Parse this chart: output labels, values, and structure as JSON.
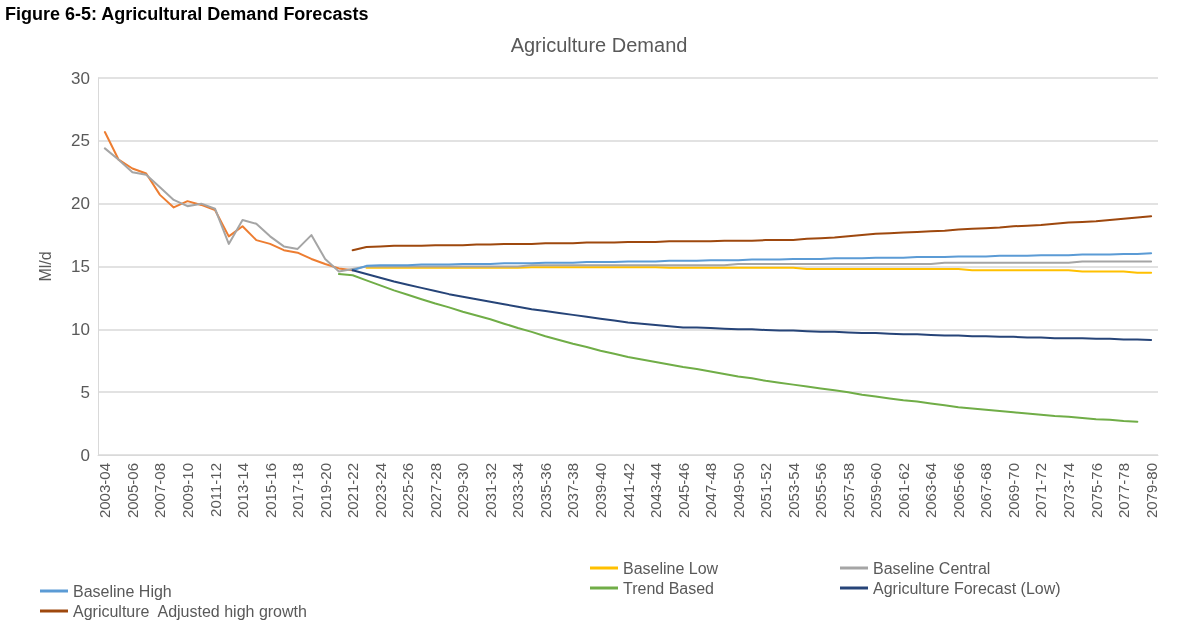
{
  "chart_data": {
    "type": "line",
    "title": "Figure 6-5: Agricultural Demand Forecasts",
    "subtitle": "Agriculture Demand",
    "ylabel": "Ml/d",
    "categories": [
      "2003-04",
      null,
      "2005-06",
      null,
      "2007-08",
      null,
      "2009-10",
      null,
      "2011-12",
      null,
      "2013-14",
      null,
      "2015-16",
      null,
      "2017-18",
      null,
      "2019-20",
      null,
      "2021-22",
      null,
      "2023-24",
      null,
      "2025-26",
      null,
      "2027-28",
      null,
      "2029-30",
      null,
      "2031-32",
      null,
      "2033-34",
      null,
      "2035-36",
      null,
      "2037-38",
      null,
      "2039-40",
      null,
      "2041-42",
      null,
      "2043-44",
      null,
      "2045-46",
      null,
      "2047-48",
      null,
      "2049-50",
      null,
      "2051-52",
      null,
      "2053-54",
      null,
      "2055-56",
      null,
      "2057-58",
      null,
      "2059-60",
      null,
      "2061-62",
      null,
      "2063-64",
      null,
      "2065-66",
      null,
      "2067-68",
      null,
      "2069-70",
      null,
      "2071-72",
      null,
      "2073-74",
      null,
      "2075-76",
      null,
      "2077-78",
      null,
      "2079-80"
    ],
    "series": [
      {
        "color": "#ed7d31",
        "values": [
          25.7,
          23.5,
          22.8,
          22.4,
          20.7,
          19.7,
          20.2,
          19.9,
          19.5,
          17.4,
          18.2,
          17.1,
          16.8,
          16.3,
          16.1,
          15.6,
          15.2,
          14.85,
          14.7,
          null,
          null,
          null,
          null,
          null,
          null,
          null,
          null,
          null,
          null,
          null,
          null,
          null,
          null,
          null,
          null,
          null,
          null,
          null,
          null,
          null,
          null,
          null,
          null,
          null,
          null,
          null,
          null,
          null,
          null,
          null,
          null,
          null,
          null,
          null,
          null,
          null,
          null,
          null,
          null,
          null,
          null,
          null,
          null,
          null,
          null,
          null,
          null,
          null,
          null,
          null,
          null,
          null,
          null,
          null,
          null,
          null,
          null
        ]
      },
      {
        "name": "Baseline Low",
        "color": "#ffc000",
        "values": [
          null,
          null,
          null,
          null,
          null,
          null,
          null,
          null,
          null,
          null,
          null,
          null,
          null,
          null,
          null,
          null,
          null,
          null,
          null,
          14.9,
          14.9,
          14.9,
          14.9,
          14.9,
          14.9,
          14.9,
          14.9,
          14.9,
          14.9,
          14.9,
          14.9,
          14.95,
          14.95,
          14.95,
          14.95,
          14.95,
          14.95,
          14.95,
          14.95,
          14.95,
          14.95,
          14.9,
          14.9,
          14.9,
          14.9,
          14.9,
          14.9,
          14.9,
          14.9,
          14.9,
          14.9,
          14.8,
          14.8,
          14.8,
          14.8,
          14.8,
          14.8,
          14.8,
          14.8,
          14.8,
          14.8,
          14.8,
          14.8,
          14.7,
          14.7,
          14.7,
          14.7,
          14.7,
          14.7,
          14.7,
          14.7,
          14.6,
          14.6,
          14.6,
          14.6,
          14.5,
          14.5
        ]
      },
      {
        "name": "Baseline Central",
        "color": "#a5a5a5",
        "values": [
          24.4,
          23.5,
          22.5,
          22.3,
          21.3,
          20.3,
          19.8,
          20.0,
          19.6,
          16.8,
          18.7,
          18.4,
          17.4,
          16.6,
          16.4,
          17.5,
          15.6,
          14.6,
          14.8,
          15.0,
          15.0,
          15.0,
          15.0,
          15.0,
          15.0,
          15.0,
          15.0,
          15.0,
          15.0,
          15.0,
          15.0,
          15.1,
          15.1,
          15.1,
          15.1,
          15.1,
          15.1,
          15.1,
          15.1,
          15.1,
          15.1,
          15.1,
          15.1,
          15.1,
          15.1,
          15.1,
          15.2,
          15.2,
          15.2,
          15.2,
          15.2,
          15.2,
          15.2,
          15.2,
          15.2,
          15.2,
          15.2,
          15.2,
          15.2,
          15.2,
          15.2,
          15.3,
          15.3,
          15.3,
          15.3,
          15.3,
          15.3,
          15.3,
          15.3,
          15.3,
          15.3,
          15.4,
          15.4,
          15.4,
          15.4,
          15.4,
          15.4
        ]
      },
      {
        "name": "Baseline High",
        "color": "#5b9bd5",
        "values": [
          null,
          null,
          null,
          null,
          null,
          null,
          null,
          null,
          null,
          null,
          null,
          null,
          null,
          null,
          null,
          null,
          null,
          null,
          14.7,
          15.05,
          15.1,
          15.1,
          15.1,
          15.15,
          15.15,
          15.15,
          15.2,
          15.2,
          15.2,
          15.25,
          15.25,
          15.25,
          15.3,
          15.3,
          15.3,
          15.35,
          15.35,
          15.35,
          15.4,
          15.4,
          15.4,
          15.45,
          15.45,
          15.45,
          15.5,
          15.5,
          15.5,
          15.55,
          15.55,
          15.55,
          15.6,
          15.6,
          15.6,
          15.65,
          15.65,
          15.65,
          15.7,
          15.7,
          15.7,
          15.75,
          15.75,
          15.75,
          15.8,
          15.8,
          15.8,
          15.85,
          15.85,
          15.85,
          15.9,
          15.9,
          15.9,
          15.95,
          15.95,
          15.95,
          16.0,
          16.0,
          16.05
        ]
      },
      {
        "name": "Trend Based",
        "color": "#70ad47",
        "values": [
          null,
          null,
          null,
          null,
          null,
          null,
          null,
          null,
          null,
          null,
          null,
          null,
          null,
          null,
          null,
          null,
          null,
          14.4,
          14.3,
          13.9,
          13.5,
          13.1,
          12.75,
          12.4,
          12.05,
          11.75,
          11.4,
          11.1,
          10.8,
          10.45,
          10.1,
          9.8,
          9.45,
          9.15,
          8.85,
          8.6,
          8.3,
          8.05,
          7.8,
          7.6,
          7.4,
          7.2,
          7.0,
          6.85,
          6.65,
          6.45,
          6.25,
          6.1,
          5.9,
          5.75,
          5.6,
          5.45,
          5.3,
          5.15,
          5.0,
          4.8,
          4.65,
          4.5,
          4.35,
          4.25,
          4.1,
          3.95,
          3.8,
          3.7,
          3.6,
          3.5,
          3.4,
          3.3,
          3.2,
          3.1,
          3.05,
          2.95,
          2.85,
          2.8,
          2.7,
          2.65,
          null
        ]
      },
      {
        "name": "Agriculture Forecast (Low)",
        "color": "#264478",
        "values": [
          null,
          null,
          null,
          null,
          null,
          null,
          null,
          null,
          null,
          null,
          null,
          null,
          null,
          null,
          null,
          null,
          null,
          null,
          14.7,
          14.4,
          14.1,
          13.8,
          13.55,
          13.3,
          13.05,
          12.8,
          12.6,
          12.4,
          12.2,
          12.0,
          11.8,
          11.6,
          11.45,
          11.3,
          11.15,
          11.0,
          10.85,
          10.7,
          10.55,
          10.45,
          10.35,
          10.25,
          10.15,
          10.15,
          10.1,
          10.05,
          10.0,
          10.0,
          9.95,
          9.9,
          9.9,
          9.85,
          9.8,
          9.8,
          9.75,
          9.7,
          9.7,
          9.65,
          9.6,
          9.6,
          9.55,
          9.5,
          9.5,
          9.45,
          9.45,
          9.4,
          9.4,
          9.35,
          9.35,
          9.3,
          9.3,
          9.3,
          9.25,
          9.25,
          9.2,
          9.2,
          9.15
        ]
      },
      {
        "name": "Agriculture  Adjusted high growth",
        "color": "#9e480e",
        "values": [
          null,
          null,
          null,
          null,
          null,
          null,
          null,
          null,
          null,
          null,
          null,
          null,
          null,
          null,
          null,
          null,
          null,
          null,
          16.3,
          16.55,
          16.6,
          16.65,
          16.65,
          16.65,
          16.7,
          16.7,
          16.7,
          16.75,
          16.75,
          16.8,
          16.8,
          16.8,
          16.85,
          16.85,
          16.85,
          16.9,
          16.9,
          16.9,
          16.95,
          16.95,
          16.95,
          17.0,
          17.0,
          17.0,
          17.0,
          17.05,
          17.05,
          17.05,
          17.1,
          17.1,
          17.1,
          17.2,
          17.25,
          17.3,
          17.4,
          17.5,
          17.6,
          17.65,
          17.7,
          17.75,
          17.8,
          17.85,
          17.95,
          18.0,
          18.05,
          18.1,
          18.2,
          18.25,
          18.3,
          18.4,
          18.5,
          18.55,
          18.6,
          18.7,
          18.8,
          18.9,
          19.0
        ]
      }
    ],
    "ylim": [
      0,
      30
    ],
    "yticks": [
      0,
      5,
      10,
      15,
      20,
      25,
      30
    ],
    "grid": "y",
    "legend": "bottom",
    "marker": "none",
    "line_style": "solid"
  }
}
